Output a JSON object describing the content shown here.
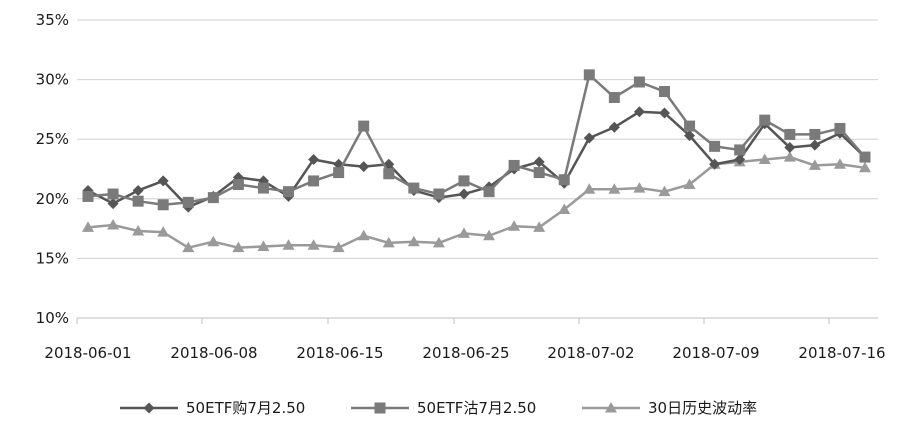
{
  "chart_data": {
    "type": "line",
    "ylim": [
      0.1,
      0.35
    ],
    "y_ticks": [
      "10%",
      "15%",
      "20%",
      "25%",
      "30%",
      "35%"
    ],
    "x_tick_labels": [
      "2018-06-01",
      "2018-06-08",
      "2018-06-15",
      "2018-06-25",
      "2018-07-02",
      "2018-07-09",
      "2018-07-16"
    ],
    "grid": "horizontal",
    "legend_position": "bottom",
    "series": [
      {
        "name": "50ETF购7月2.50",
        "marker": "diamond",
        "color": "#555555",
        "values": [
          0.207,
          0.196,
          0.207,
          0.215,
          0.193,
          0.202,
          0.218,
          0.215,
          0.202,
          0.233,
          0.229,
          0.227,
          0.229,
          0.207,
          0.201,
          0.204,
          0.21,
          0.225,
          0.231,
          0.213,
          0.251,
          0.26,
          0.273,
          0.272,
          0.253,
          0.229,
          0.233,
          0.263,
          0.243,
          0.245,
          0.255,
          0.235
        ]
      },
      {
        "name": "50ETF沽7月2.50",
        "marker": "square",
        "color": "#7a7a7a",
        "values": [
          0.202,
          0.204,
          0.198,
          0.195,
          0.197,
          0.201,
          0.212,
          0.209,
          0.206,
          0.215,
          0.222,
          0.261,
          0.221,
          0.209,
          0.204,
          0.215,
          0.206,
          0.228,
          0.222,
          0.216,
          0.304,
          0.285,
          0.298,
          0.29,
          0.261,
          0.244,
          0.241,
          0.266,
          0.254,
          0.254,
          0.259,
          0.235
        ]
      },
      {
        "name": "30日历史波动率",
        "marker": "triangle",
        "color": "#9a9a9a",
        "values": [
          0.176,
          0.178,
          0.173,
          0.172,
          0.159,
          0.164,
          0.159,
          0.16,
          0.161,
          0.161,
          0.159,
          0.169,
          0.163,
          0.164,
          0.163,
          0.171,
          0.169,
          0.177,
          0.176,
          0.191,
          0.208,
          0.208,
          0.209,
          0.206,
          0.212,
          0.229,
          0.231,
          0.233,
          0.235,
          0.228,
          0.229,
          0.226
        ]
      }
    ]
  }
}
